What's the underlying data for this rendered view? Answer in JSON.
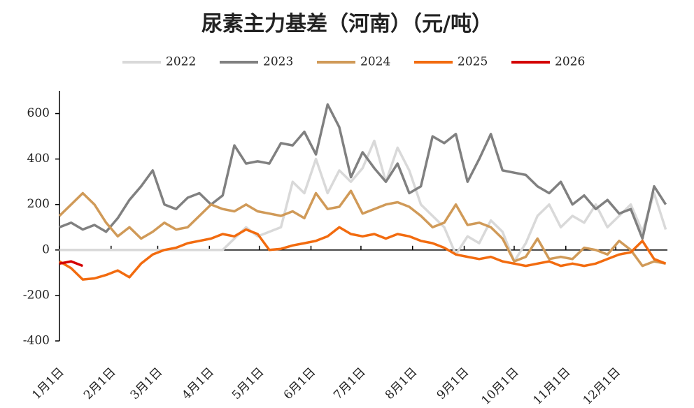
{
  "chart_data": {
    "type": "line",
    "title": "尿素主力基差（河南）（元/吨）",
    "x": [
      1,
      8,
      15,
      22,
      29,
      36,
      43,
      50,
      57,
      64,
      71,
      78,
      85,
      92,
      99,
      106,
      113,
      120,
      127,
      134,
      141,
      148,
      155,
      162,
      169,
      176,
      183,
      190,
      197,
      204,
      211,
      218,
      225,
      232,
      239,
      246,
      253,
      260,
      267,
      274,
      281,
      288,
      295,
      302,
      309,
      316,
      323,
      330,
      337,
      344,
      351,
      358,
      365
    ],
    "xlim": [
      1,
      366
    ],
    "xticks": [
      {
        "value": 1,
        "label": "1月1日"
      },
      {
        "value": 32,
        "label": "2月1日"
      },
      {
        "value": 60,
        "label": "3月1日"
      },
      {
        "value": 91,
        "label": "4月1日"
      },
      {
        "value": 121,
        "label": "5月1日"
      },
      {
        "value": 152,
        "label": "6月1日"
      },
      {
        "value": 182,
        "label": "7月1日"
      },
      {
        "value": 213,
        "label": "8月1日"
      },
      {
        "value": 244,
        "label": "9月1日"
      },
      {
        "value": 274,
        "label": "10月1日"
      },
      {
        "value": 305,
        "label": "11月1日"
      },
      {
        "value": 335,
        "label": "12月1日"
      }
    ],
    "ylim": [
      -400,
      700
    ],
    "yticks": [
      -400,
      -200,
      0,
      200,
      400,
      600
    ],
    "legend": "top",
    "series": [
      {
        "name": "2022",
        "color": "#d9d9d9",
        "values": [
          0,
          0,
          0,
          0,
          0,
          0,
          0,
          0,
          0,
          0,
          0,
          0,
          0,
          0,
          0,
          50,
          100,
          60,
          80,
          100,
          300,
          250,
          400,
          250,
          350,
          300,
          360,
          480,
          300,
          450,
          350,
          200,
          150,
          100,
          -20,
          60,
          30,
          130,
          80,
          -50,
          30,
          150,
          200,
          100,
          150,
          120,
          200,
          100,
          150,
          200,
          80,
          250,
          90
        ]
      },
      {
        "name": "2023",
        "color": "#808080",
        "values": [
          100,
          120,
          90,
          110,
          80,
          140,
          220,
          280,
          350,
          200,
          180,
          230,
          250,
          200,
          240,
          460,
          380,
          390,
          380,
          470,
          460,
          520,
          420,
          640,
          540,
          320,
          430,
          360,
          300,
          380,
          250,
          280,
          500,
          470,
          510,
          300,
          400,
          510,
          350,
          340,
          330,
          280,
          250,
          300,
          200,
          240,
          180,
          220,
          160,
          180,
          50,
          280,
          200
        ]
      },
      {
        "name": "2024",
        "color": "#d09a58",
        "values": [
          150,
          200,
          250,
          200,
          120,
          60,
          100,
          50,
          80,
          120,
          90,
          100,
          150,
          200,
          180,
          170,
          200,
          170,
          160,
          150,
          170,
          140,
          250,
          180,
          190,
          260,
          160,
          180,
          200,
          210,
          190,
          150,
          100,
          120,
          200,
          110,
          120,
          100,
          50,
          -50,
          -30,
          50,
          -40,
          -30,
          -40,
          10,
          0,
          -20,
          40,
          0,
          -70,
          -50,
          -60
        ]
      },
      {
        "name": "2025",
        "color": "#f26b0f",
        "values": [
          -50,
          -80,
          -130,
          -125,
          -110,
          -90,
          -120,
          -60,
          -20,
          0,
          10,
          30,
          40,
          50,
          70,
          60,
          90,
          70,
          0,
          5,
          20,
          30,
          40,
          60,
          100,
          70,
          60,
          70,
          50,
          70,
          60,
          40,
          30,
          10,
          -20,
          -30,
          -40,
          -30,
          -50,
          -60,
          -70,
          -60,
          -50,
          -70,
          -60,
          -70,
          -60,
          -40,
          -20,
          -10,
          40,
          -40,
          -60
        ]
      },
      {
        "name": "2026",
        "color": "#d40000",
        "values": [
          -60,
          -50,
          -70,
          null,
          null,
          null,
          null,
          null,
          null,
          null,
          null,
          null,
          null,
          null,
          null,
          null,
          null,
          null,
          null,
          null,
          null,
          null,
          null,
          null,
          null,
          null,
          null,
          null,
          null,
          null,
          null,
          null,
          null,
          null,
          null,
          null,
          null,
          null,
          null,
          null,
          null,
          null,
          null,
          null,
          null,
          null,
          null,
          null,
          null,
          null,
          null,
          null,
          null
        ]
      }
    ]
  }
}
